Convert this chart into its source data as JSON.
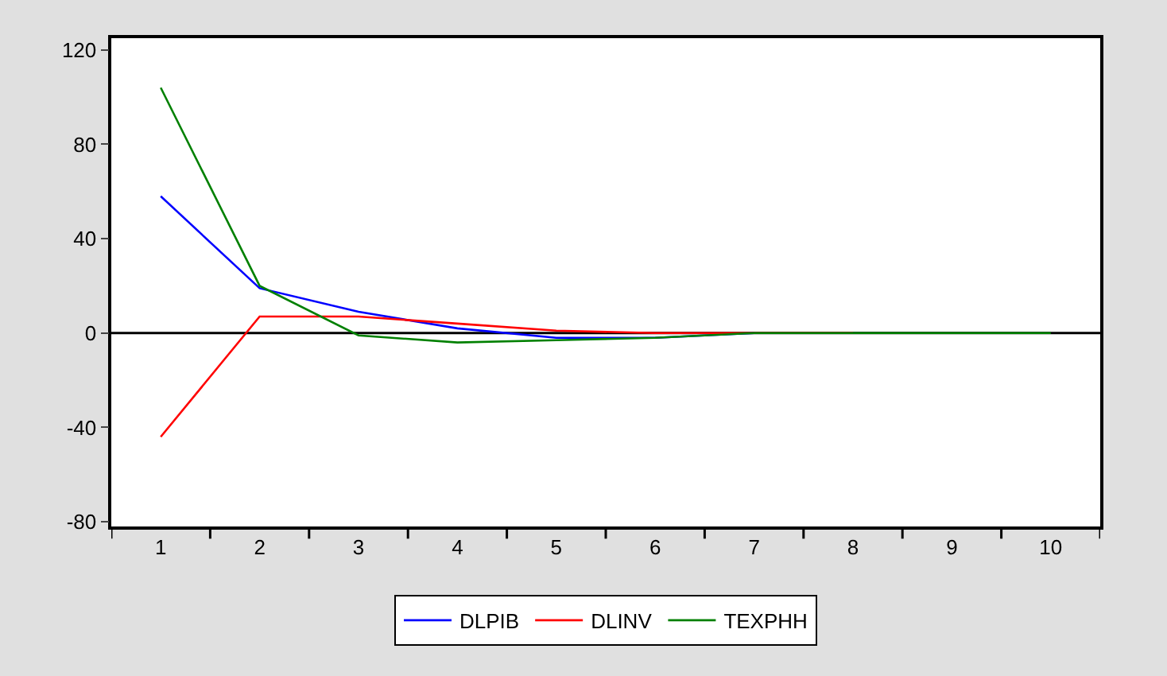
{
  "chart_data": {
    "type": "line",
    "categories": [
      "1",
      "2",
      "3",
      "4",
      "5",
      "6",
      "7",
      "8",
      "9",
      "10"
    ],
    "series": [
      {
        "name": "DLPIB",
        "color": "#0000ff",
        "values": [
          58,
          19,
          9,
          2,
          -2,
          -2,
          0,
          null,
          null,
          null
        ]
      },
      {
        "name": "DLINV",
        "color": "#ff0000",
        "values": [
          -44,
          7,
          7,
          4,
          1,
          0,
          0,
          0,
          null,
          null
        ]
      },
      {
        "name": "TEXPHH",
        "color": "#008000",
        "values": [
          104,
          20,
          -1,
          -4,
          -3,
          -2,
          0,
          0,
          0,
          0
        ]
      }
    ],
    "ylim": [
      -82,
      125
    ],
    "yticks": [
      -80,
      -40,
      0,
      40,
      80,
      120
    ],
    "ref_lines": [
      {
        "axis": "y",
        "value": 0,
        "color": "#000000"
      }
    ],
    "grid": false,
    "legend": "bottom",
    "marker": "none",
    "line_style": "solid"
  }
}
